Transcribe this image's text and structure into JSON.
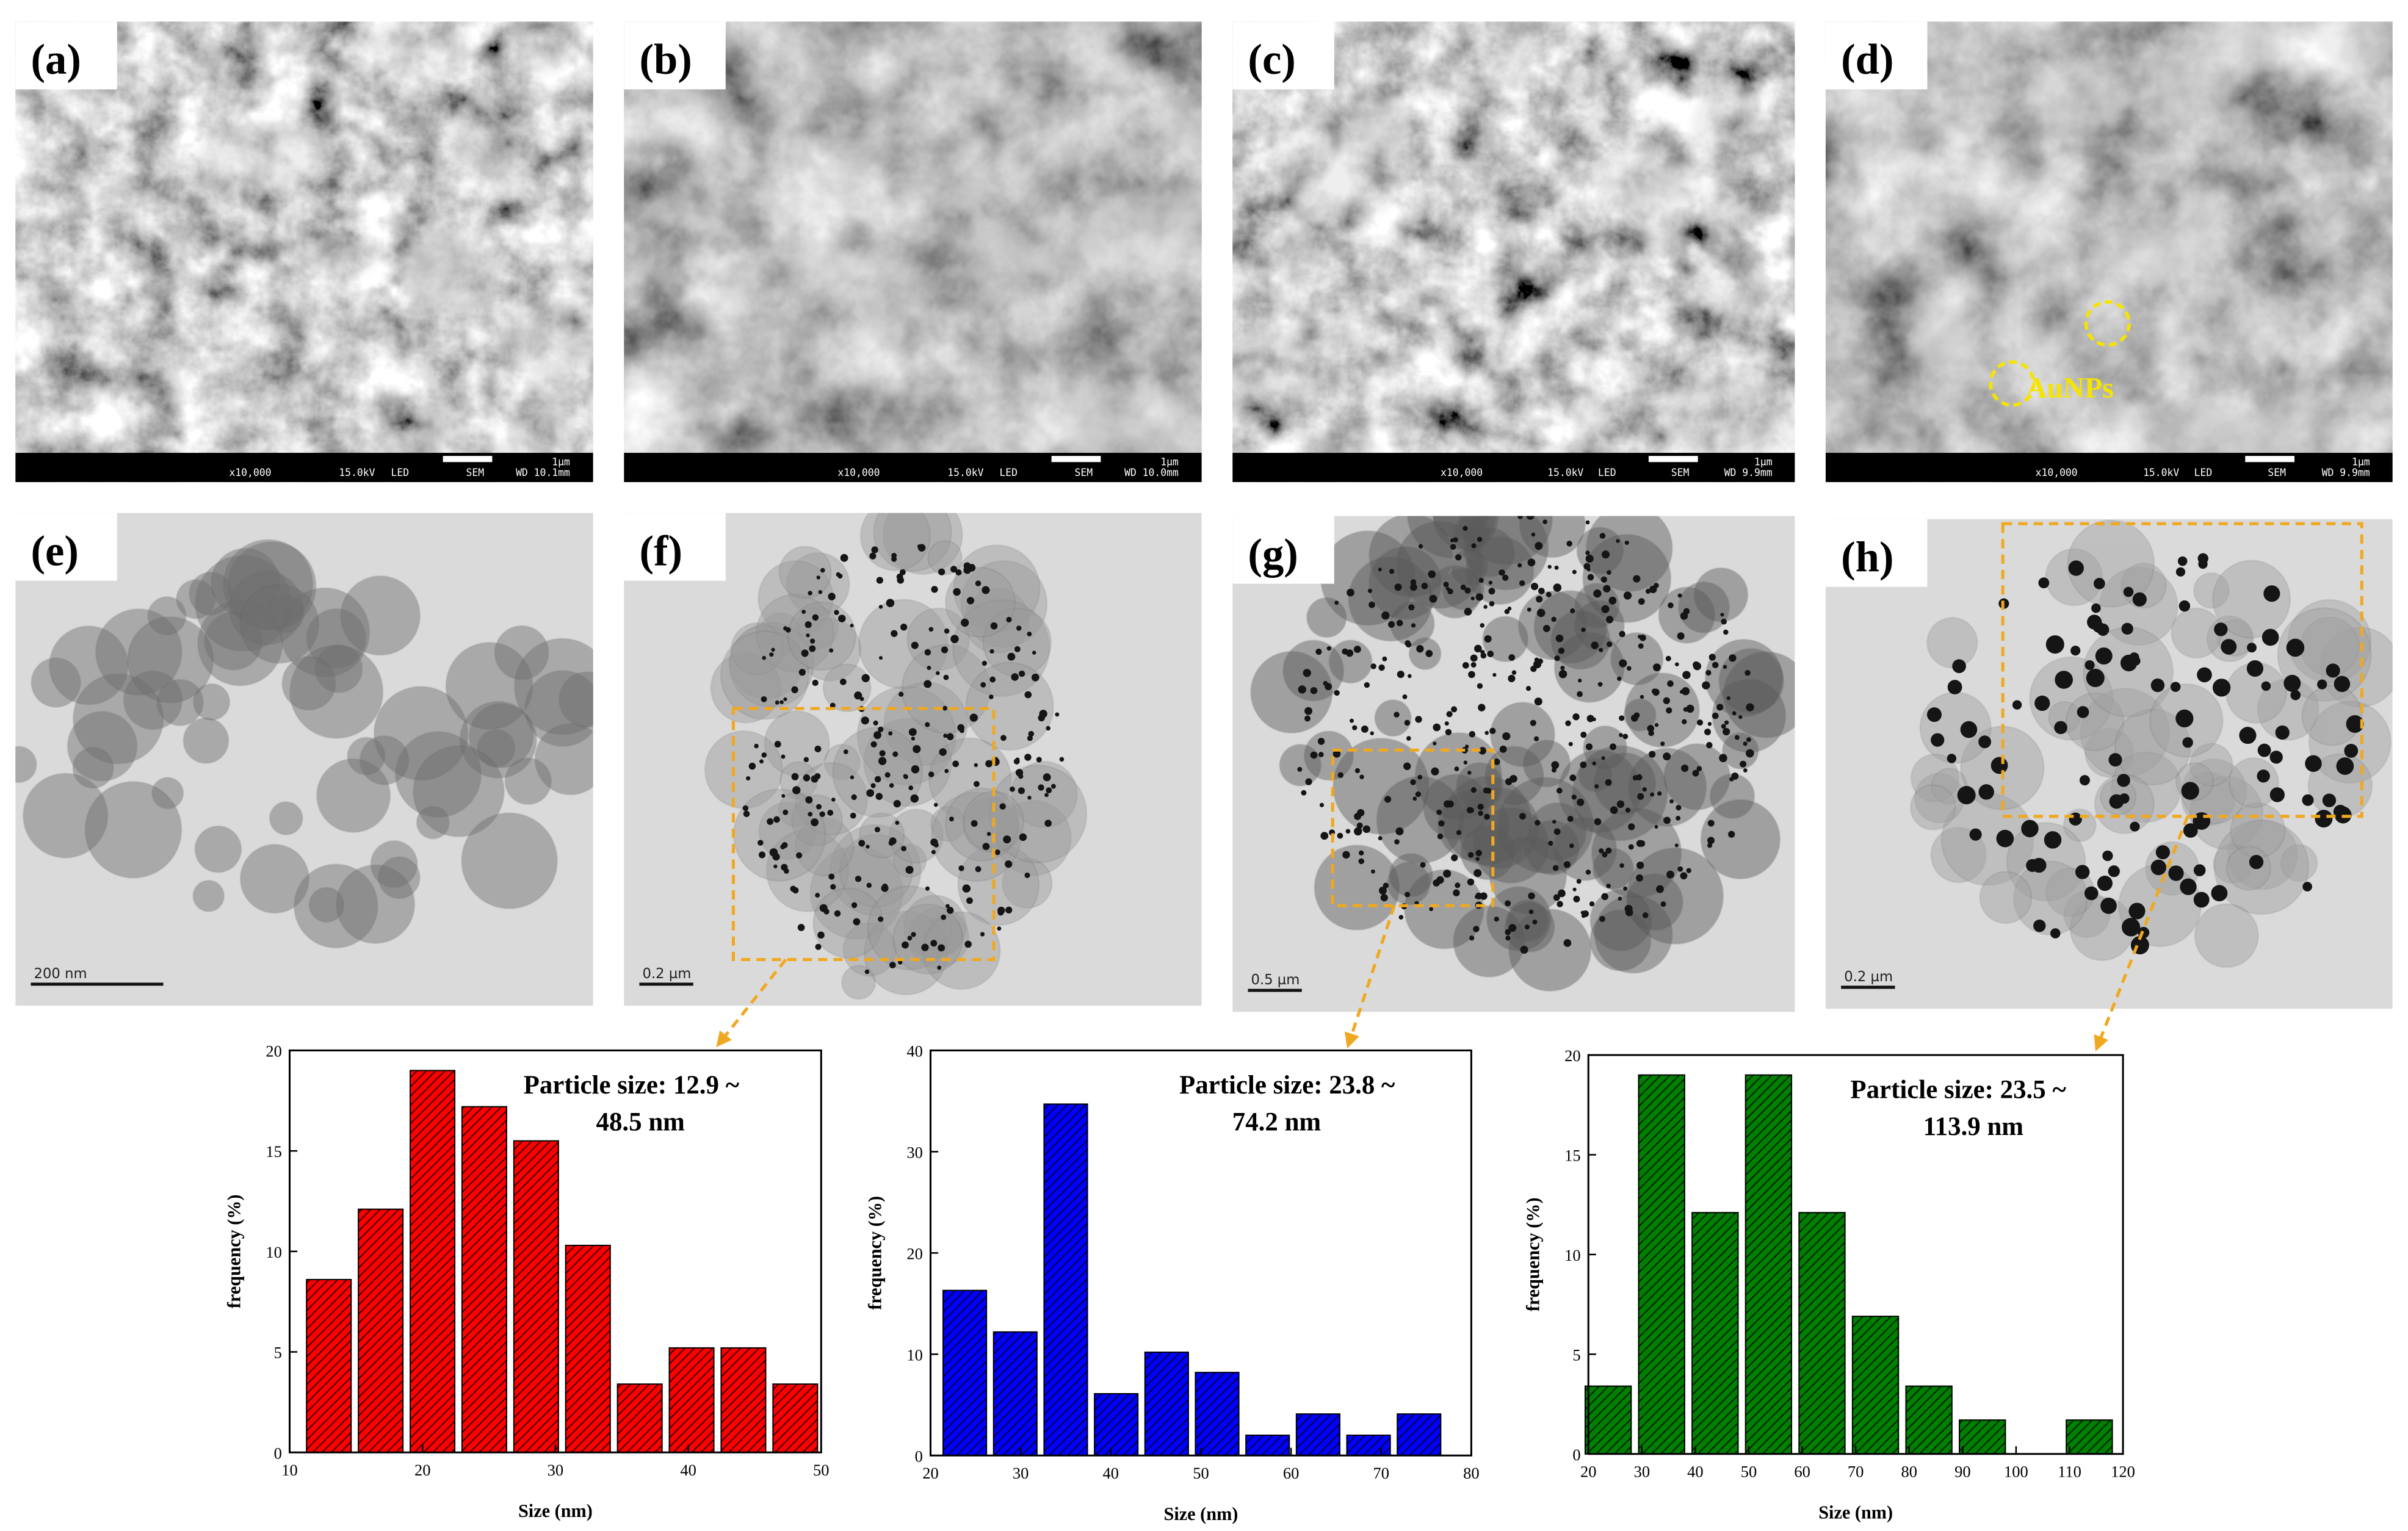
{
  "panels": [
    {
      "label": "(a)",
      "info": {
        "mag": "x10,000",
        "kv": "15.0kV",
        "mode": "LED",
        "detector": "SEM",
        "wd": "WD 10.1mm",
        "scale": "1µm"
      }
    },
    {
      "label": "(b)",
      "info": {
        "mag": "x10,000",
        "kv": "15.0kV",
        "mode": "LED",
        "detector": "SEM",
        "wd": "WD 10.0mm",
        "scale": "1µm"
      }
    },
    {
      "label": "(c)",
      "info": {
        "mag": "x10,000",
        "kv": "15.0kV",
        "mode": "LED",
        "detector": "SEM",
        "wd": "WD 9.9mm",
        "scale": "1µm"
      }
    },
    {
      "label": "(d)",
      "info": {
        "mag": "x10,000",
        "kv": "15.0kV",
        "mode": "LED",
        "detector": "SEM",
        "wd": "WD 9.9mm",
        "scale": "1µm"
      }
    },
    {
      "label": "(e)",
      "scale": "200 nm"
    },
    {
      "label": "(f)",
      "scale": "0.2 µm"
    },
    {
      "label": "(g)",
      "scale": "0.5 µm"
    },
    {
      "label": "(h)",
      "scale": "0.2 µm"
    }
  ],
  "annotation": "AuNPs",
  "chart_data": [
    {
      "type": "histogram",
      "annotation": [
        "Particle size: 12.9 ~",
        "48.5 nm"
      ],
      "xlabel": "Size (nm)",
      "ylabel": "frequency (%)",
      "bins": [
        11,
        14.9,
        18.8,
        22.7,
        26.6,
        30.5,
        34.4,
        38.3,
        42.2,
        46.1,
        50
      ],
      "values": [
        8.6,
        12.1,
        19,
        17.2,
        15.5,
        10.3,
        3.4,
        5.2,
        5.2,
        3.4
      ],
      "color": "#ff0000",
      "xlim": [
        10,
        50
      ],
      "xticks": [
        10,
        20,
        30,
        40,
        50
      ],
      "ylim": [
        0,
        20
      ],
      "yticks": [
        0,
        5,
        10,
        15,
        20
      ]
    },
    {
      "type": "histogram",
      "annotation": [
        "Particle size: 23.8 ~",
        "74.2 nm"
      ],
      "xlabel": "Size (nm)",
      "ylabel": "frequency (%)",
      "bins": [
        21,
        26.6,
        32.2,
        37.8,
        43.4,
        49,
        54.6,
        60.2,
        65.8,
        71.4,
        77
      ],
      "values": [
        16.3,
        12.2,
        34.7,
        6.1,
        10.2,
        8.2,
        2,
        4.1,
        2,
        4.1
      ],
      "color": "#0000ff",
      "xlim": [
        20,
        80
      ],
      "xticks": [
        20,
        30,
        40,
        50,
        60,
        70,
        80
      ],
      "ylim": [
        0,
        40
      ],
      "yticks": [
        0,
        10,
        20,
        30,
        40
      ]
    },
    {
      "type": "histogram",
      "annotation": [
        "Particle size: 23.5 ~",
        "113.9 nm"
      ],
      "xlabel": "Size (nm)",
      "ylabel": "frequency (%)",
      "bins": [
        18.7,
        28.7,
        38.7,
        48.7,
        58.7,
        68.7,
        78.7,
        88.7,
        98.7,
        108.7,
        118.7
      ],
      "values": [
        3.4,
        19,
        12.1,
        19,
        12.1,
        6.9,
        3.4,
        1.7,
        0,
        1.7
      ],
      "color": "#008000",
      "xlim": [
        20,
        120
      ],
      "xticks": [
        20,
        30,
        40,
        50,
        60,
        70,
        80,
        90,
        100,
        110,
        120
      ],
      "ylim": [
        0,
        20
      ],
      "yticks": [
        0,
        5,
        10,
        15,
        20
      ]
    }
  ]
}
